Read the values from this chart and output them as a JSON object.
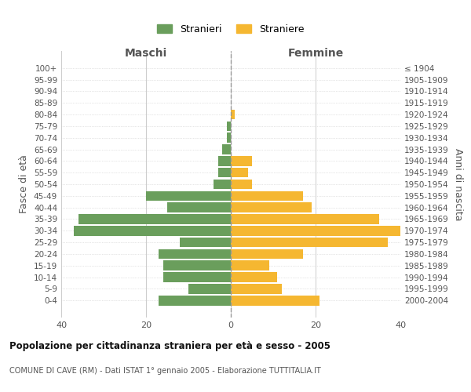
{
  "age_groups": [
    "100+",
    "95-99",
    "90-94",
    "85-89",
    "80-84",
    "75-79",
    "70-74",
    "65-69",
    "60-64",
    "55-59",
    "50-54",
    "45-49",
    "40-44",
    "35-39",
    "30-34",
    "25-29",
    "20-24",
    "15-19",
    "10-14",
    "5-9",
    "0-4"
  ],
  "birth_years": [
    "≤ 1904",
    "1905-1909",
    "1910-1914",
    "1915-1919",
    "1920-1924",
    "1925-1929",
    "1930-1934",
    "1935-1939",
    "1940-1944",
    "1945-1949",
    "1950-1954",
    "1955-1959",
    "1960-1964",
    "1965-1969",
    "1970-1974",
    "1975-1979",
    "1980-1984",
    "1985-1989",
    "1990-1994",
    "1995-1999",
    "2000-2004"
  ],
  "maschi": [
    0,
    0,
    0,
    0,
    0,
    1,
    1,
    2,
    3,
    3,
    4,
    20,
    15,
    36,
    37,
    12,
    17,
    16,
    16,
    10,
    17
  ],
  "femmine": [
    0,
    0,
    0,
    0,
    1,
    0,
    0,
    0,
    5,
    4,
    5,
    17,
    19,
    35,
    40,
    37,
    17,
    9,
    11,
    12,
    21
  ],
  "maschi_color": "#6a9e5c",
  "femmine_color": "#f5b731",
  "background_color": "#ffffff",
  "grid_color": "#cccccc",
  "title": "Popolazione per cittadinanza straniera per età e sesso - 2005",
  "subtitle": "COMUNE DI CAVE (RM) - Dati ISTAT 1° gennaio 2005 - Elaborazione TUTTITALIA.IT",
  "xlabel_left": "Maschi",
  "xlabel_right": "Femmine",
  "ylabel_left": "Fasce di età",
  "ylabel_right": "Anni di nascita",
  "legend_maschi": "Stranieri",
  "legend_femmine": "Straniere",
  "xlim": 40,
  "bar_height": 0.85
}
